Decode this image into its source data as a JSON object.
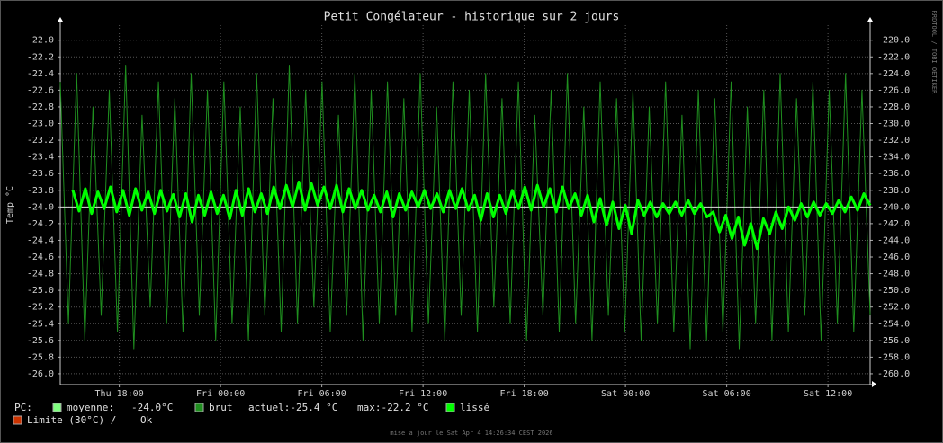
{
  "chart_data": {
    "type": "line",
    "title": "Petit Congélateur - historique sur 2 jours",
    "ylabel": "Temp °C",
    "ylim": [
      -26.13,
      -21.82
    ],
    "yticks": [
      {
        "value": -22,
        "label": "-22.0"
      },
      -22.2,
      -22.4,
      -22.6,
      -22.8,
      {
        "value": -23,
        "label": "-23.0"
      },
      -23.2,
      -23.4,
      -23.6,
      -23.8,
      {
        "value": -24,
        "label": "-24.0"
      },
      -24.2,
      -24.4,
      -24.6,
      -24.8,
      {
        "value": -25,
        "label": "-25.0"
      },
      -25.2,
      -25.4,
      -25.6,
      -25.8,
      {
        "value": -26,
        "label": "-26.0"
      }
    ],
    "y2lim": [
      -261.3,
      -218.2
    ],
    "y2ticks": [
      {
        "value": -220,
        "label": "-220.0"
      },
      {
        "value": -222,
        "label": "-222.0"
      },
      {
        "value": -224,
        "label": "-224.0"
      },
      {
        "value": -226,
        "label": "-226.0"
      },
      {
        "value": -228,
        "label": "-228.0"
      },
      {
        "value": -230,
        "label": "-230.0"
      },
      {
        "value": -232,
        "label": "-232.0"
      },
      {
        "value": -234,
        "label": "-234.0"
      },
      {
        "value": -236,
        "label": "-236.0"
      },
      {
        "value": -238,
        "label": "-238.0"
      },
      {
        "value": -240,
        "label": "-240.0"
      },
      {
        "value": -242,
        "label": "-242.0"
      },
      {
        "value": -244,
        "label": "-244.0"
      },
      {
        "value": -246,
        "label": "-246.0"
      },
      {
        "value": -248,
        "label": "-248.0"
      },
      {
        "value": -250,
        "label": "-250.0"
      },
      {
        "value": -252,
        "label": "-252.0"
      },
      {
        "value": -254,
        "label": "-254.0"
      },
      {
        "value": -256,
        "label": "-256.0"
      },
      {
        "value": -258,
        "label": "-258.0"
      },
      {
        "value": -260,
        "label": "-260.0"
      }
    ],
    "xlim": [
      0,
      48
    ],
    "xticks": [
      {
        "value": 3.5,
        "label": "Thu 18:00"
      },
      {
        "value": 9.5,
        "label": "Fri 00:00"
      },
      {
        "value": 15.5,
        "label": "Fri 06:00"
      },
      {
        "value": 21.5,
        "label": "Fri 12:00"
      },
      {
        "value": 27.5,
        "label": "Fri 18:00"
      },
      {
        "value": 33.5,
        "label": "Sat 00:00"
      },
      {
        "value": 39.5,
        "label": "Sat 06:00"
      },
      {
        "value": 45.5,
        "label": "Sat 12:00"
      }
    ],
    "grid": true,
    "series": [
      {
        "name": "brut",
        "color": "#1f8f1f",
        "values": [
          -22.5,
          -25.4,
          -22.4,
          -25.6,
          -22.8,
          -25.3,
          -22.6,
          -25.5,
          -22.3,
          -25.7,
          -22.9,
          -25.2,
          -22.5,
          -25.4,
          -22.7,
          -25.5,
          -22.4,
          -25.3,
          -22.6,
          -25.6,
          -22.5,
          -25.4,
          -22.8,
          -25.6,
          -22.4,
          -25.3,
          -22.7,
          -25.5,
          -22.3,
          -25.4,
          -22.6,
          -25.2,
          -22.5,
          -25.5,
          -22.9,
          -25.3,
          -22.4,
          -25.6,
          -22.6,
          -25.4,
          -22.5,
          -25.3,
          -22.7,
          -25.5,
          -22.4,
          -25.4,
          -22.8,
          -25.6,
          -22.5,
          -25.3,
          -22.6,
          -25.5,
          -22.4,
          -25.2,
          -22.7,
          -25.4,
          -22.5,
          -25.6,
          -22.9,
          -25.3,
          -22.6,
          -25.5,
          -22.4,
          -25.4,
          -22.8,
          -25.6,
          -22.5,
          -25.3,
          -22.7,
          -25.5,
          -22.6,
          -25.6,
          -22.8,
          -25.4,
          -22.5,
          -25.5,
          -22.9,
          -25.7,
          -22.6,
          -25.6,
          -22.7,
          -25.5,
          -22.5,
          -25.7,
          -22.8,
          -25.4,
          -22.6,
          -25.6,
          -22.4,
          -25.5,
          -22.7,
          -25.3,
          -22.5,
          -25.6,
          -22.6,
          -25.4,
          -22.4,
          -25.5,
          -22.6,
          -25.3
        ]
      },
      {
        "name": "lissé",
        "color": "#00ff00",
        "values": [
          null,
          null,
          -23.8,
          -24.05,
          -23.78,
          -24.08,
          -23.82,
          -24.02,
          -23.76,
          -24.06,
          -23.8,
          -24.1,
          -23.78,
          -24.04,
          -23.82,
          -24.08,
          -23.8,
          -24.05,
          -23.85,
          -24.12,
          -23.84,
          -24.18,
          -23.86,
          -24.1,
          -23.82,
          -24.08,
          -23.86,
          -24.14,
          -23.8,
          -24.1,
          -23.78,
          -24.06,
          -23.84,
          -24.08,
          -23.76,
          -24.02,
          -23.74,
          -24.0,
          -23.7,
          -24.04,
          -23.72,
          -23.98,
          -23.76,
          -24.02,
          -23.74,
          -24.06,
          -23.78,
          -24.02,
          -23.8,
          -24.04,
          -23.86,
          -24.06,
          -23.82,
          -24.12,
          -23.84,
          -24.04,
          -23.82,
          -24.0,
          -23.8,
          -24.02,
          -23.84,
          -24.06,
          -23.8,
          -24.02,
          -23.78,
          -24.04,
          -23.86,
          -24.16,
          -23.84,
          -24.12,
          -23.86,
          -24.08,
          -23.8,
          -24.02,
          -23.76,
          -24.04,
          -23.74,
          -24.0,
          -23.78,
          -24.06,
          -23.76,
          -24.02,
          -23.84,
          -24.1,
          -23.86,
          -24.18,
          -23.9,
          -24.22,
          -23.94,
          -24.26,
          -23.98,
          -24.32,
          -23.92,
          -24.1,
          -23.94,
          -24.12,
          -23.96,
          -24.08,
          -23.94,
          -24.1,
          -23.92,
          -24.08,
          -23.96,
          -24.12,
          -24.06,
          -24.3,
          -24.1,
          -24.38,
          -24.12,
          -24.46,
          -24.2,
          -24.5,
          -24.14,
          -24.32,
          -24.06,
          -24.26,
          -24.0,
          -24.16,
          -23.96,
          -24.12,
          -23.94,
          -24.1,
          -23.96,
          -24.08,
          -23.92,
          -24.06,
          -23.88,
          -24.04,
          -23.84,
          -23.98
        ]
      }
    ],
    "average": {
      "name": "moyenne:",
      "value": -24,
      "label": "-24.0°C",
      "color": "#80ff80"
    },
    "legend_prefix": "PC:",
    "current": "actuel:-25.4 °C",
    "max": "max:-22.2 °C",
    "limit": {
      "name": "Limite (30°C) /",
      "status": "Ok",
      "color": "#cc3300"
    },
    "credit": "RRDTOOL / TOBI OETIKER",
    "footer": "mise a jour le Sat Apr  4 14:26:34 CEST 2026"
  }
}
